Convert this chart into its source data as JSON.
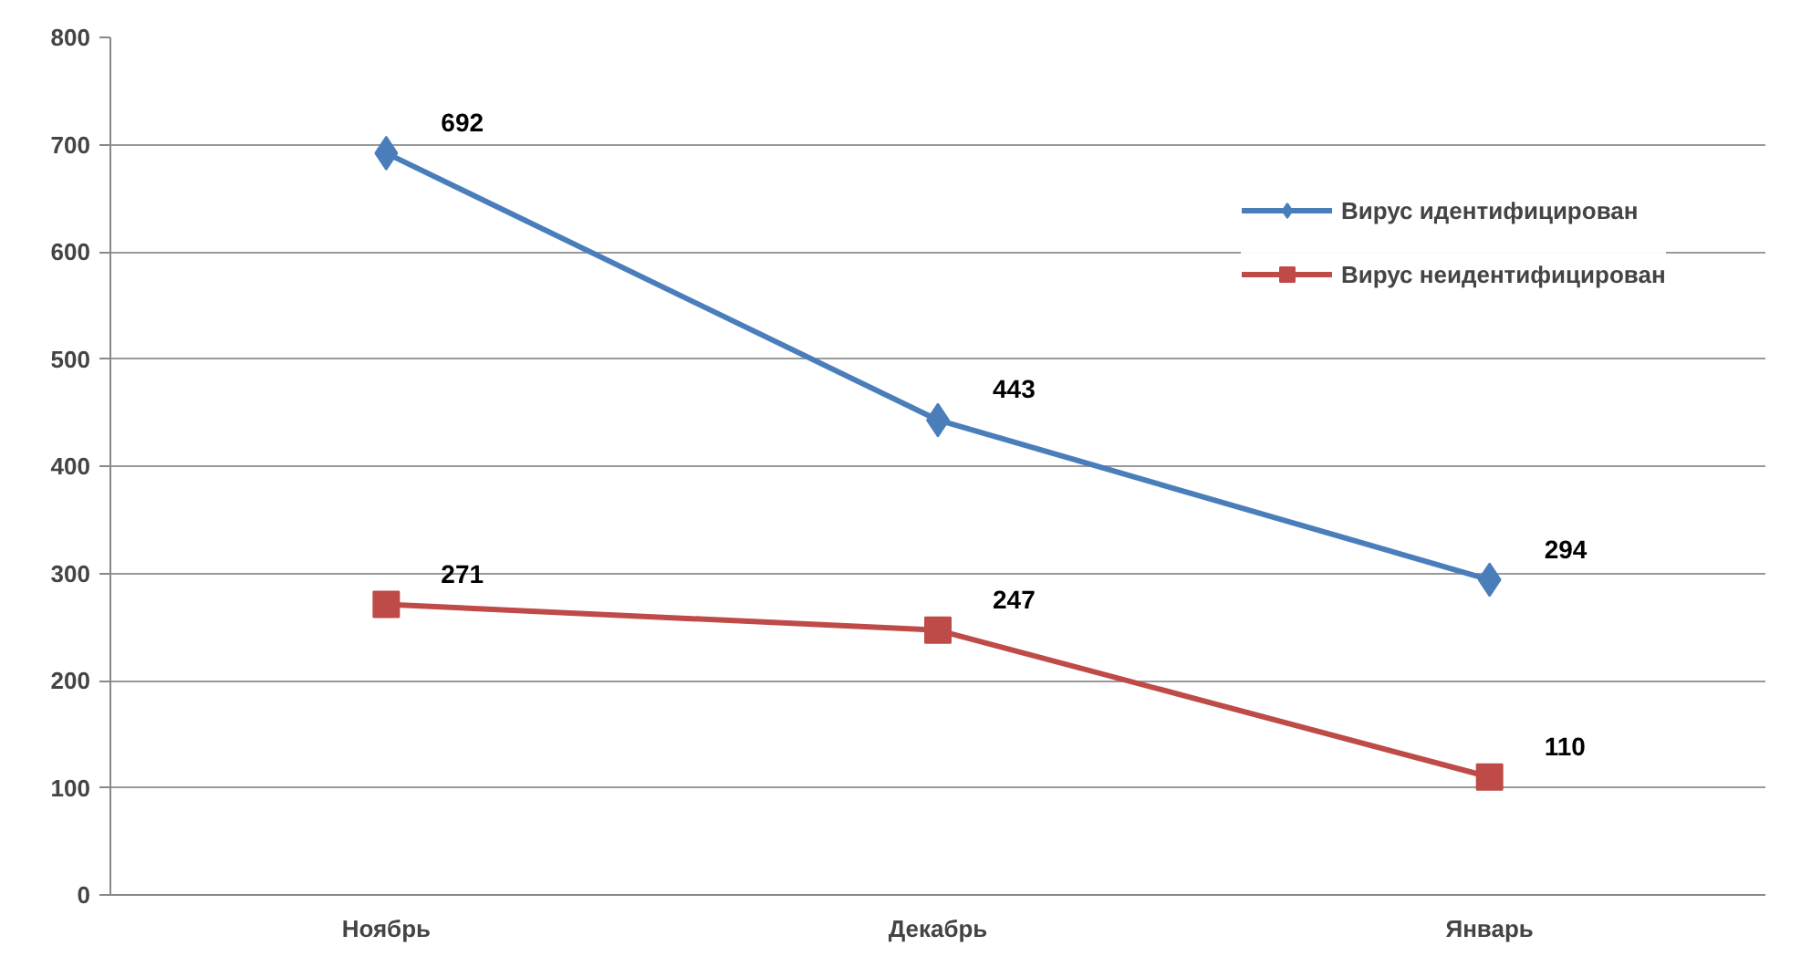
{
  "chart_data": {
    "type": "line",
    "categories": [
      "Ноябрь",
      "Декабрь",
      "Январь"
    ],
    "series": [
      {
        "name": "Вирус идентифицирован",
        "color": "#4a7ebb",
        "values": [
          692,
          443,
          294
        ],
        "marker": "diamond"
      },
      {
        "name": "Вирус неидентифицирован",
        "color": "#be4b48",
        "values": [
          271,
          247,
          110
        ],
        "marker": "square"
      }
    ],
    "ylim": [
      0,
      800
    ],
    "yticks": [
      0,
      100,
      200,
      300,
      400,
      500,
      600,
      700,
      800
    ],
    "grid": "y",
    "legend": "top right",
    "data_labels": true
  }
}
